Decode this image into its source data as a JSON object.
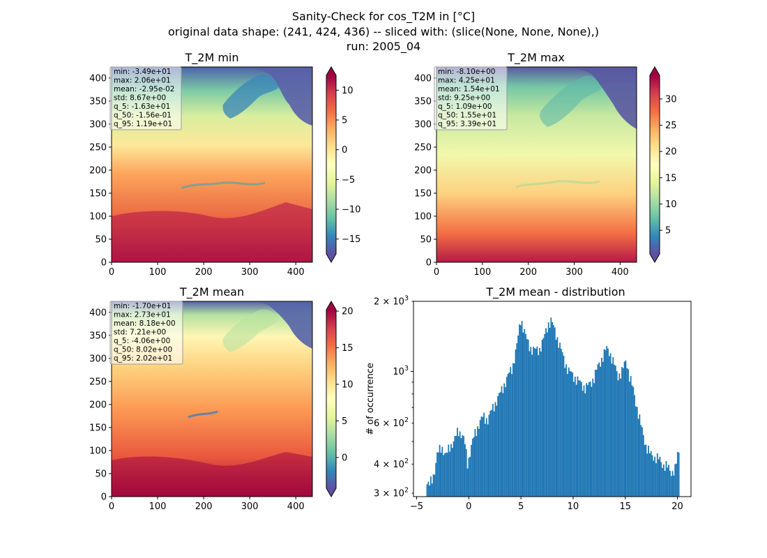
{
  "suptitle": {
    "line1": "Sanity-Check for cos_T2M in [°C]",
    "line2": "original data shape: (241, 424, 436) -- sliced with: (slice(None, None, None),)",
    "line3": "run: 2005_04"
  },
  "chart_data": [
    {
      "type": "heatmap",
      "title": "T_2M min",
      "colormap": "Spectral_r",
      "xlim": [
        0,
        436
      ],
      "ylim": [
        0,
        424
      ],
      "xticks": [
        "0",
        "100",
        "200",
        "300",
        "400"
      ],
      "yticks": [
        "0",
        "50",
        "100",
        "150",
        "200",
        "250",
        "300",
        "350",
        "400"
      ],
      "clim": [
        -17.5,
        12.5
      ],
      "colorbar_ticks": [
        "−15",
        "−10",
        "−5",
        "0",
        "5",
        "10"
      ],
      "stats": [
        "min: -3.49e+01",
        "max: 2.06e+01",
        "mean: -2.95e-02",
        "std: 8.67e+00",
        "q_5: -1.63e+01",
        "q_50: -1.56e-01",
        "q_95: 1.19e+01"
      ]
    },
    {
      "type": "heatmap",
      "title": "T_2M max",
      "colormap": "Spectral_r",
      "xlim": [
        0,
        436
      ],
      "ylim": [
        0,
        424
      ],
      "xticks": [
        "0",
        "100",
        "200",
        "300",
        "400"
      ],
      "yticks": [
        "0",
        "50",
        "100",
        "150",
        "200",
        "250",
        "300",
        "350",
        "400"
      ],
      "clim": [
        0.5,
        34.5
      ],
      "colorbar_ticks": [
        "5",
        "10",
        "15",
        "20",
        "25",
        "30"
      ],
      "stats": [
        "min: -8.10e+00",
        "max: 4.25e+01",
        "mean: 1.54e+01",
        "std: 9.25e+00",
        "q_5: 1.09e+00",
        "q_50: 1.55e+01",
        "q_95: 3.39e+01"
      ]
    },
    {
      "type": "heatmap",
      "title": "T_2M mean",
      "colormap": "Spectral_r",
      "xlim": [
        0,
        436
      ],
      "ylim": [
        0,
        424
      ],
      "xticks": [
        "0",
        "100",
        "200",
        "300",
        "400"
      ],
      "yticks": [
        "0",
        "50",
        "100",
        "150",
        "200",
        "250",
        "300",
        "350",
        "400"
      ],
      "clim": [
        -4.2,
        20.2
      ],
      "colorbar_ticks": [
        "0",
        "5",
        "10",
        "15",
        "20"
      ],
      "stats": [
        "min: -1.70e+01",
        "max: 2.73e+01",
        "mean: 8.18e+00",
        "std: 7.21e+00",
        "q_5: -4.06e+00",
        "q_50: 8.02e+00",
        "q_95: 2.02e+01"
      ]
    },
    {
      "type": "bar",
      "title": "T_2M mean - distribution",
      "ylabel": "# of occurrence",
      "xlabel": "",
      "log_y": true,
      "color": "#1f77b4",
      "xlim": [
        -5.3,
        21.3
      ],
      "ylim": [
        290,
        2000
      ],
      "xticks": [
        "−5",
        "0",
        "5",
        "10",
        "15",
        "20"
      ],
      "yticks": [
        {
          "base": "3 × 10",
          "exp": "2"
        },
        {
          "base": "4 × 10",
          "exp": "2"
        },
        {
          "base": "6 × 10",
          "exp": "2"
        },
        {
          "base": "10",
          "exp": "3"
        },
        {
          "base": "2 × 10",
          "exp": "3"
        }
      ],
      "bin_range": [
        -4.06,
        20.2
      ],
      "bins": 200,
      "profile": [
        [
          -4.06,
          330
        ],
        [
          -3.8,
          320
        ],
        [
          -3.6,
          340
        ],
        [
          -3.3,
          370
        ],
        [
          -3.0,
          440
        ],
        [
          -2.6,
          480
        ],
        [
          -2.2,
          430
        ],
        [
          -1.8,
          480
        ],
        [
          -1.4,
          500
        ],
        [
          -1.0,
          560
        ],
        [
          -0.7,
          540
        ],
        [
          -0.4,
          500
        ],
        [
          -0.1,
          400
        ],
        [
          0.2,
          470
        ],
        [
          0.6,
          540
        ],
        [
          1.0,
          600
        ],
        [
          1.4,
          640
        ],
        [
          1.8,
          620
        ],
        [
          2.2,
          680
        ],
        [
          2.6,
          740
        ],
        [
          3.0,
          800
        ],
        [
          3.4,
          880
        ],
        [
          3.8,
          960
        ],
        [
          4.2,
          1050
        ],
        [
          4.6,
          1280
        ],
        [
          5.0,
          1700
        ],
        [
          5.3,
          1500
        ],
        [
          5.6,
          1350
        ],
        [
          6.0,
          1250
        ],
        [
          6.4,
          1230
        ],
        [
          6.8,
          1250
        ],
        [
          7.2,
          1380
        ],
        [
          7.6,
          1600
        ],
        [
          7.9,
          1650
        ],
        [
          8.3,
          1480
        ],
        [
          8.7,
          1300
        ],
        [
          9.2,
          1100
        ],
        [
          9.6,
          1000
        ],
        [
          10.0,
          960
        ],
        [
          10.4,
          920
        ],
        [
          10.8,
          880
        ],
        [
          11.2,
          850
        ],
        [
          11.6,
          880
        ],
        [
          12.0,
          940
        ],
        [
          12.4,
          1050
        ],
        [
          12.8,
          1150
        ],
        [
          13.2,
          1250
        ],
        [
          13.5,
          1220
        ],
        [
          13.9,
          1080
        ],
        [
          14.3,
          960
        ],
        [
          14.7,
          1000
        ],
        [
          15.1,
          1120
        ],
        [
          15.4,
          960
        ],
        [
          15.8,
          820
        ],
        [
          16.2,
          680
        ],
        [
          16.6,
          560
        ],
        [
          17.0,
          480
        ],
        [
          17.4,
          440
        ],
        [
          17.8,
          430
        ],
        [
          18.2,
          420
        ],
        [
          18.6,
          400
        ],
        [
          19.0,
          390
        ],
        [
          19.4,
          370
        ],
        [
          19.8,
          380
        ],
        [
          20.0,
          430
        ],
        [
          20.2,
          460
        ]
      ]
    }
  ]
}
